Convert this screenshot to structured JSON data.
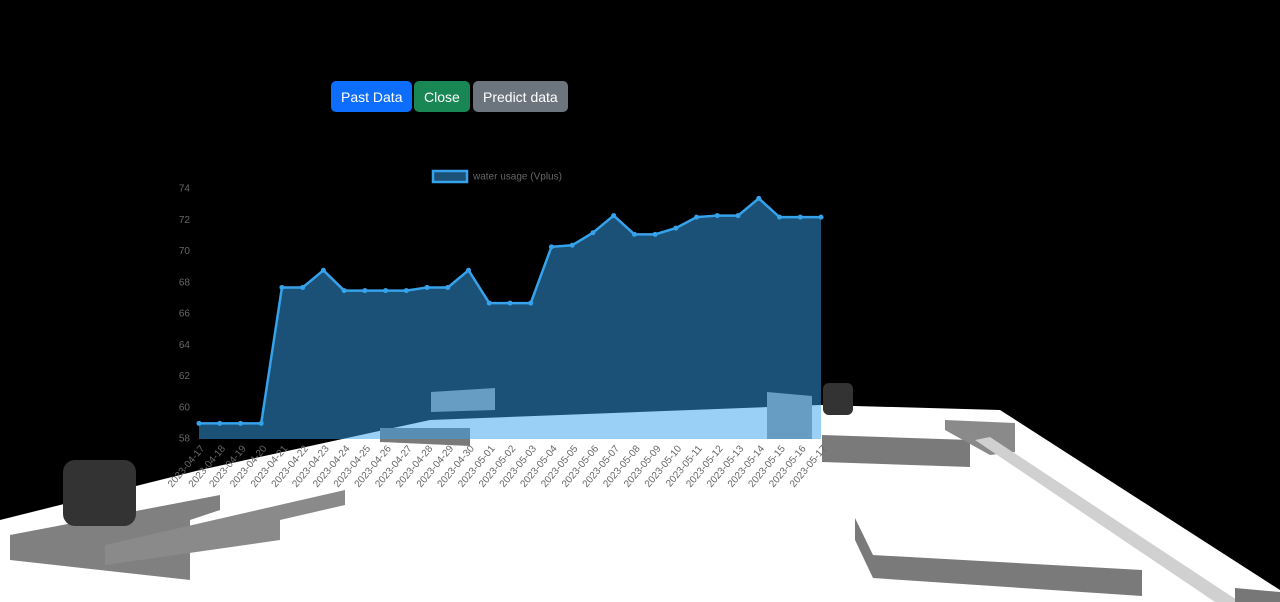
{
  "buttons": [
    "Past Data",
    "Close",
    "Predict data"
  ],
  "chart_data": {
    "type": "line",
    "categories": [
      "2023-04-17",
      "2023-04-18",
      "2023-04-19",
      "2023-04-20",
      "2023-04-21",
      "2023-04-22",
      "2023-04-23",
      "2023-04-24",
      "2023-04-25",
      "2023-04-26",
      "2023-04-27",
      "2023-04-28",
      "2023-04-29",
      "2023-04-30",
      "2023-05-01",
      "2023-05-02",
      "2023-05-03",
      "2023-05-04",
      "2023-05-05",
      "2023-05-06",
      "2023-05-07",
      "2023-05-08",
      "2023-05-09",
      "2023-05-10",
      "2023-05-11",
      "2023-05-12",
      "2023-05-13",
      "2023-05-14",
      "2023-05-15",
      "2023-05-16",
      "2023-05-17"
    ],
    "series": [
      {
        "name": "water usage (Vplus)",
        "color": "#36a2eb",
        "values": [
          59.0,
          59.0,
          59.0,
          59.0,
          67.7,
          67.7,
          68.8,
          67.5,
          67.5,
          67.5,
          67.5,
          67.7,
          67.7,
          68.8,
          66.7,
          66.7,
          66.7,
          70.3,
          70.4,
          71.2,
          72.3,
          71.1,
          71.1,
          71.5,
          72.2,
          72.3,
          72.3,
          73.4,
          72.2,
          72.2,
          72.2
        ]
      }
    ],
    "ylim": [
      58,
      74
    ],
    "yticks": [
      58,
      60,
      62,
      64,
      66,
      68,
      70,
      72,
      74
    ],
    "fill": true
  }
}
